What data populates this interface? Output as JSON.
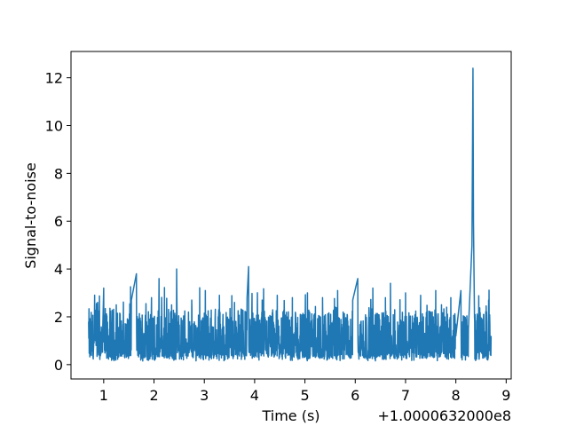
{
  "chart_data": {
    "type": "line",
    "xlabel": "Time (s)",
    "ylabel": "Signal-to-noise",
    "x_offset_label": "+1.0000632000e8",
    "xlim": [
      0.35,
      9.1
    ],
    "ylim": [
      -0.6,
      13.1
    ],
    "x_ticks": [
      1,
      2,
      3,
      4,
      5,
      6,
      7,
      8,
      9
    ],
    "y_ticks": [
      0,
      2,
      4,
      6,
      8,
      10,
      12
    ],
    "grid": false,
    "color": "#1f77b4",
    "series": [
      {
        "x": [
          0.7,
          0.78,
          0.88,
          0.98,
          1.0,
          1.12,
          1.25,
          1.4,
          1.55,
          1.65,
          1.8,
          1.95,
          2.1,
          2.22,
          2.35,
          2.45,
          2.6,
          2.75,
          2.9,
          3.02,
          3.15,
          3.3,
          3.45,
          3.6,
          3.72,
          3.85,
          3.88,
          4.0,
          4.15,
          4.3,
          4.45,
          4.6,
          4.75,
          4.9,
          5.05,
          5.2,
          5.35,
          5.5,
          5.65,
          5.8,
          5.95,
          6.05,
          6.2,
          6.35,
          6.5,
          6.6,
          6.7,
          6.85,
          7.0,
          7.15,
          7.3,
          7.45,
          7.6,
          7.75,
          7.9,
          8.0,
          8.1,
          8.25,
          8.32,
          8.34,
          8.35,
          8.37,
          8.4,
          8.55,
          8.7
        ],
        "y": [
          1.8,
          1.1,
          2.6,
          1.4,
          3.2,
          1.2,
          2.5,
          1.0,
          2.7,
          3.8,
          1.3,
          2.8,
          3.6,
          1.1,
          2.5,
          4.0,
          1.3,
          2.7,
          1.2,
          3.1,
          1.4,
          2.9,
          1.1,
          2.6,
          1.3,
          2.8,
          4.1,
          1.2,
          2.7,
          1.4,
          2.9,
          1.1,
          2.8,
          1.2,
          3.0,
          1.3,
          2.8,
          1.2,
          3.1,
          1.4,
          2.7,
          3.6,
          1.2,
          3.2,
          1.4,
          2.8,
          3.4,
          1.3,
          3.0,
          1.1,
          2.9,
          1.2,
          3.1,
          1.3,
          2.8,
          1.2,
          3.1,
          1.5,
          5.0,
          12.4,
          6.0,
          2.0,
          1.3,
          2.1,
          1.2
        ]
      }
    ]
  }
}
